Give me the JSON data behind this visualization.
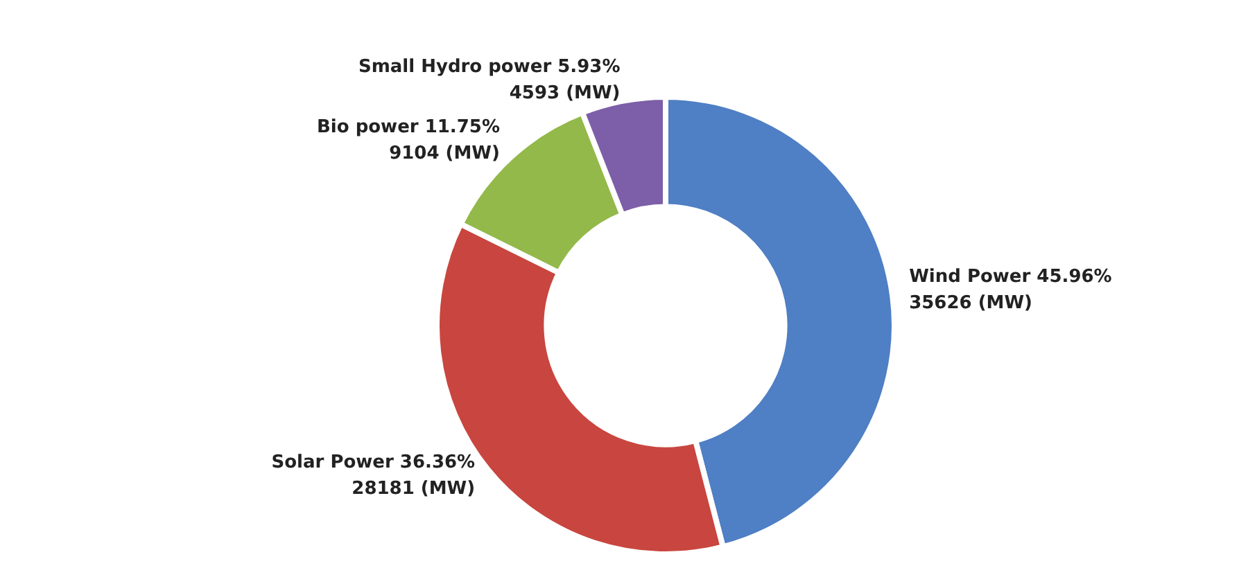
{
  "chart_data": {
    "type": "donut",
    "categories": [
      "Wind Power",
      "Solar Power",
      "Bio power",
      "Small Hydro power"
    ],
    "values": [
      35626,
      28181,
      9104,
      4593
    ],
    "colors": [
      "#4f7fc4",
      "#c8463f",
      "#93b94a",
      "#7d5ea8"
    ],
    "value_labels": [
      "45.96%\n35626 (MW)",
      "36.36%\n28181 (MW)",
      "11.75%\n9104 (MW)",
      "5.93%\n4593 (MW)"
    ]
  }
}
